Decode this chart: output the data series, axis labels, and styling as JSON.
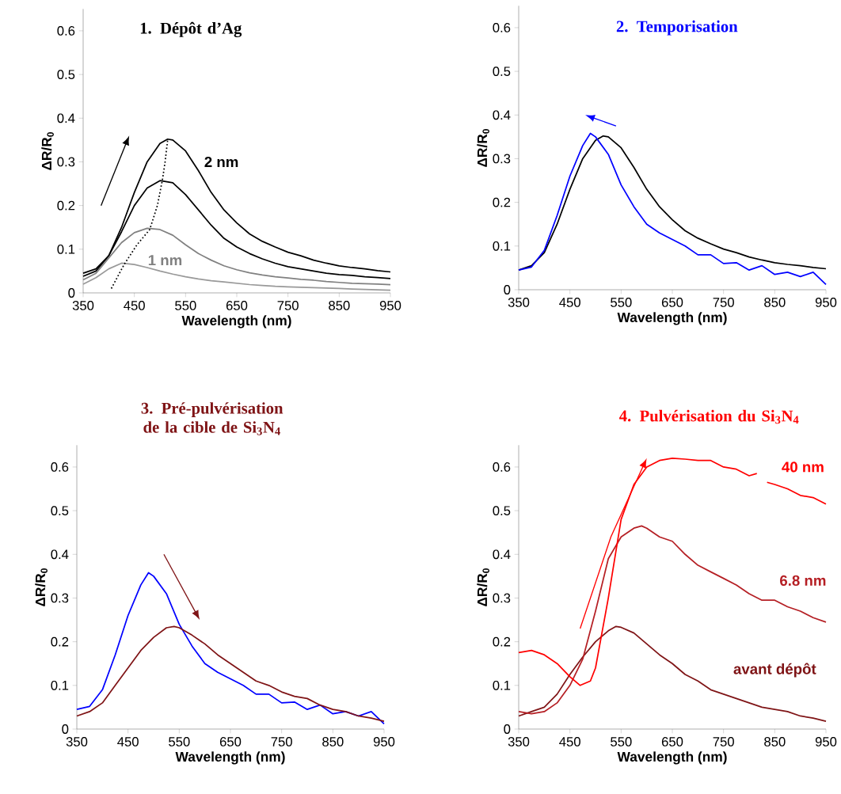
{
  "chart_data": [
    {
      "type": "line",
      "title": "1. Dépôt d’Ag",
      "xlabel": "Wavelength (nm)",
      "ylabel": "ΔR/R$_{0}$",
      "xlim": [
        350,
        950
      ],
      "ylim": [
        0,
        0.65
      ],
      "xticks": [
        350,
        450,
        550,
        650,
        750,
        850,
        950
      ],
      "yticks": [
        0,
        0.1,
        0.2,
        0.3,
        0.4,
        0.5,
        0.6
      ],
      "series": [
        {
          "name": "2 nm",
          "color": "#000000",
          "x": [
            350,
            375,
            400,
            425,
            450,
            475,
            500,
            515,
            525,
            550,
            575,
            600,
            625,
            650,
            675,
            700,
            725,
            750,
            775,
            800,
            825,
            850,
            875,
            900,
            925,
            950
          ],
          "values": [
            0.045,
            0.055,
            0.085,
            0.15,
            0.23,
            0.3,
            0.342,
            0.352,
            0.35,
            0.325,
            0.28,
            0.23,
            0.19,
            0.16,
            0.135,
            0.118,
            0.105,
            0.093,
            0.085,
            0.075,
            0.068,
            0.062,
            0.058,
            0.055,
            0.051,
            0.048
          ]
        },
        {
          "color": "#000000",
          "x": [
            350,
            375,
            400,
            425,
            450,
            475,
            500,
            525,
            550,
            575,
            600,
            625,
            650,
            675,
            700,
            725,
            750,
            775,
            800,
            825,
            850,
            875,
            900,
            925,
            950
          ],
          "values": [
            0.038,
            0.05,
            0.085,
            0.14,
            0.2,
            0.24,
            0.257,
            0.252,
            0.225,
            0.19,
            0.155,
            0.125,
            0.105,
            0.09,
            0.078,
            0.068,
            0.06,
            0.055,
            0.05,
            0.045,
            0.042,
            0.04,
            0.037,
            0.035,
            0.033
          ]
        },
        {
          "name": "1 nm",
          "color": "#808080",
          "x": [
            350,
            375,
            400,
            425,
            450,
            475,
            500,
            525,
            550,
            575,
            600,
            625,
            650,
            675,
            700,
            725,
            750,
            775,
            800,
            825,
            850,
            875,
            900,
            925,
            950
          ],
          "values": [
            0.03,
            0.045,
            0.08,
            0.115,
            0.138,
            0.148,
            0.145,
            0.132,
            0.11,
            0.09,
            0.075,
            0.062,
            0.053,
            0.046,
            0.041,
            0.037,
            0.034,
            0.031,
            0.029,
            0.026,
            0.024,
            0.022,
            0.021,
            0.02,
            0.019
          ]
        },
        {
          "color": "#999999",
          "x": [
            350,
            375,
            400,
            425,
            450,
            475,
            500,
            525,
            550,
            575,
            600,
            625,
            650,
            675,
            700,
            725,
            750,
            775,
            800,
            825,
            850,
            875,
            900,
            925,
            950
          ],
          "values": [
            0.02,
            0.035,
            0.055,
            0.068,
            0.065,
            0.058,
            0.05,
            0.043,
            0.037,
            0.032,
            0.028,
            0.025,
            0.022,
            0.019,
            0.017,
            0.015,
            0.014,
            0.013,
            0.012,
            0.011,
            0.01,
            0.009,
            0.008,
            0.007,
            0.006
          ]
        },
        {
          "color": "#000000",
          "line_style": "dotted",
          "x": [
            405,
            430,
            455,
            480,
            495,
            505,
            510,
            515
          ],
          "values": [
            0.01,
            0.065,
            0.11,
            0.145,
            0.2,
            0.26,
            0.3,
            0.35
          ]
        }
      ]
    },
    {
      "type": "line",
      "title": "2. Temporisation",
      "xlabel": "Wavelength (nm)",
      "ylabel": "ΔR/R$_{0}$",
      "xlim": [
        350,
        950
      ],
      "ylim": [
        0,
        0.65
      ],
      "xticks": [
        350,
        450,
        550,
        650,
        750,
        850,
        950
      ],
      "yticks": [
        0,
        0.1,
        0.2,
        0.3,
        0.4,
        0.5,
        0.6
      ],
      "series": [
        {
          "color": "#000000",
          "x": [
            350,
            375,
            400,
            425,
            450,
            475,
            500,
            515,
            525,
            550,
            575,
            600,
            625,
            650,
            675,
            700,
            725,
            750,
            775,
            800,
            825,
            850,
            875,
            900,
            925,
            950
          ],
          "values": [
            0.045,
            0.055,
            0.085,
            0.15,
            0.23,
            0.3,
            0.342,
            0.352,
            0.35,
            0.325,
            0.28,
            0.23,
            0.19,
            0.16,
            0.135,
            0.118,
            0.105,
            0.093,
            0.085,
            0.075,
            0.068,
            0.062,
            0.058,
            0.055,
            0.051,
            0.048
          ]
        },
        {
          "color": "#0000ff",
          "x": [
            350,
            375,
            400,
            425,
            450,
            475,
            490,
            500,
            525,
            550,
            575,
            600,
            625,
            650,
            675,
            700,
            725,
            750,
            775,
            800,
            825,
            850,
            875,
            900,
            925,
            950
          ],
          "values": [
            0.045,
            0.052,
            0.09,
            0.17,
            0.26,
            0.33,
            0.358,
            0.35,
            0.31,
            0.24,
            0.19,
            0.15,
            0.13,
            0.115,
            0.1,
            0.08,
            0.08,
            0.06,
            0.062,
            0.045,
            0.055,
            0.035,
            0.04,
            0.03,
            0.04,
            0.012
          ]
        }
      ]
    },
    {
      "type": "line",
      "title": "3. Pré-pulvérisation de la cible de Si$_{3}$N$_{4}$",
      "xlabel": "Wavelength (nm)",
      "ylabel": "ΔR/R$_{0}$",
      "xlim": [
        350,
        950
      ],
      "ylim": [
        0,
        0.65
      ],
      "xticks": [
        350,
        450,
        550,
        650,
        750,
        850,
        950
      ],
      "yticks": [
        0,
        0.1,
        0.2,
        0.3,
        0.4,
        0.5,
        0.6
      ],
      "series": [
        {
          "color": "#0000ff",
          "x": [
            350,
            375,
            400,
            425,
            450,
            475,
            490,
            500,
            525,
            550,
            575,
            600,
            625,
            650,
            675,
            700,
            725,
            750,
            775,
            800,
            825,
            850,
            875,
            900,
            925,
            950
          ],
          "values": [
            0.045,
            0.052,
            0.09,
            0.17,
            0.26,
            0.33,
            0.358,
            0.35,
            0.31,
            0.24,
            0.19,
            0.15,
            0.13,
            0.115,
            0.1,
            0.08,
            0.08,
            0.06,
            0.062,
            0.045,
            0.055,
            0.035,
            0.04,
            0.03,
            0.04,
            0.012
          ]
        },
        {
          "color": "#7f1416",
          "x": [
            350,
            375,
            400,
            425,
            450,
            475,
            500,
            525,
            540,
            550,
            575,
            600,
            625,
            650,
            675,
            700,
            725,
            750,
            775,
            800,
            825,
            850,
            875,
            900,
            925,
            950
          ],
          "values": [
            0.03,
            0.04,
            0.06,
            0.1,
            0.14,
            0.18,
            0.21,
            0.232,
            0.235,
            0.232,
            0.215,
            0.195,
            0.17,
            0.15,
            0.13,
            0.11,
            0.1,
            0.085,
            0.075,
            0.07,
            0.055,
            0.045,
            0.04,
            0.03,
            0.025,
            0.018
          ]
        }
      ]
    },
    {
      "type": "line",
      "title": "4. Pulvérisation du Si$_{3}$N$_{4}$",
      "xlabel": "Wavelength (nm)",
      "ylabel": "ΔR/R$_{0}$",
      "xlim": [
        350,
        950
      ],
      "ylim": [
        0,
        0.65
      ],
      "xticks": [
        350,
        450,
        550,
        650,
        750,
        850,
        950
      ],
      "yticks": [
        0,
        0.1,
        0.2,
        0.3,
        0.4,
        0.5,
        0.6
      ],
      "series": [
        {
          "name": "avant dépôt",
          "color": "#7f1416",
          "x": [
            350,
            375,
            400,
            425,
            450,
            475,
            500,
            525,
            540,
            550,
            575,
            600,
            625,
            650,
            675,
            700,
            725,
            750,
            775,
            800,
            825,
            850,
            875,
            900,
            925,
            950
          ],
          "values": [
            0.03,
            0.04,
            0.05,
            0.08,
            0.125,
            0.165,
            0.2,
            0.225,
            0.235,
            0.233,
            0.22,
            0.195,
            0.17,
            0.15,
            0.125,
            0.11,
            0.09,
            0.08,
            0.07,
            0.06,
            0.05,
            0.045,
            0.04,
            0.03,
            0.025,
            0.018
          ]
        },
        {
          "name": "6.8 nm",
          "color": "#b51f24",
          "x": [
            350,
            375,
            400,
            425,
            450,
            475,
            500,
            525,
            550,
            575,
            590,
            600,
            625,
            650,
            675,
            700,
            725,
            750,
            775,
            800,
            825,
            850,
            875,
            900,
            925,
            950
          ],
          "values": [
            0.04,
            0.035,
            0.04,
            0.06,
            0.1,
            0.16,
            0.27,
            0.39,
            0.44,
            0.46,
            0.465,
            0.46,
            0.44,
            0.43,
            0.4,
            0.375,
            0.36,
            0.345,
            0.33,
            0.31,
            0.295,
            0.295,
            0.28,
            0.27,
            0.255,
            0.245
          ]
        },
        {
          "name": "40 nm",
          "color": "#ff0000",
          "x": [
            350,
            375,
            400,
            425,
            450,
            470,
            490,
            500,
            525,
            550,
            575,
            600,
            625,
            650,
            675,
            700,
            725,
            750,
            775,
            800,
            815,
            825,
            835,
            850,
            875,
            900,
            925,
            950
          ],
          "values": [
            0.175,
            0.18,
            0.17,
            0.15,
            0.12,
            0.1,
            0.11,
            0.14,
            0.3,
            0.48,
            0.56,
            0.6,
            0.615,
            0.62,
            0.618,
            0.615,
            0.615,
            0.6,
            0.595,
            0.58,
            0.585,
            null,
            0.565,
            0.56,
            0.55,
            0.535,
            0.53,
            0.515
          ]
        }
      ]
    }
  ]
}
